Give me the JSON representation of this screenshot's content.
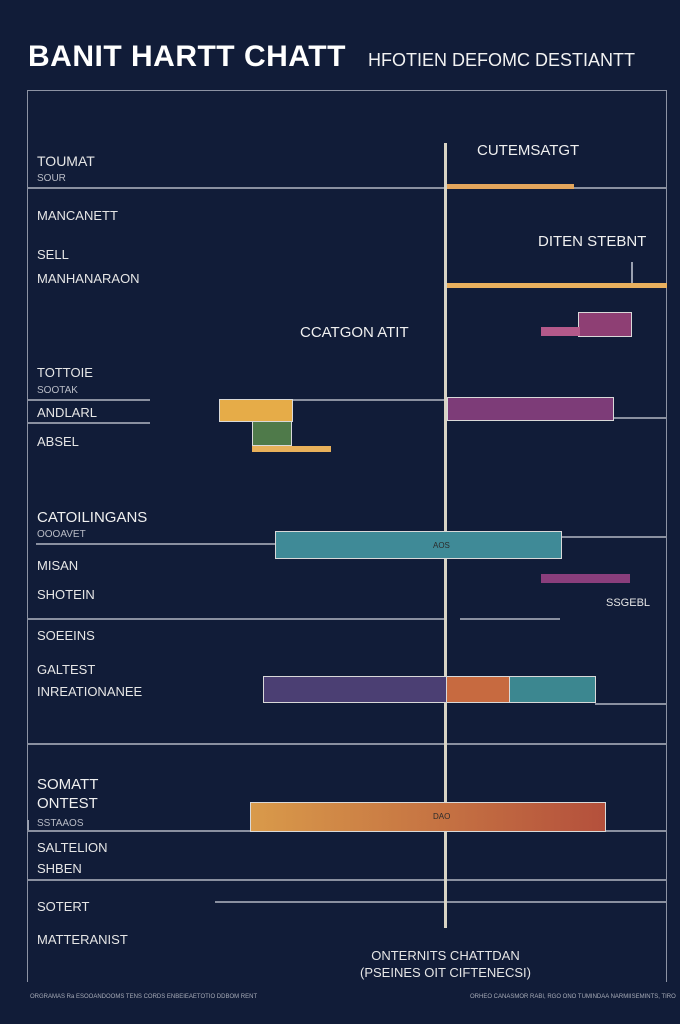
{
  "header": {
    "title": "BANIT HARTT CHATT",
    "subtitle": "HFOTIEN DEFOMC DESTIANTT"
  },
  "chart_data": {
    "type": "bar",
    "title": "BANIT HARTT CHATT",
    "subtitle": "HFOTIEN DEFOMC DESTIANTT",
    "xlabel": "",
    "ylabel": "",
    "annotations": [
      {
        "name": "cutemsatgt",
        "text": "CUTEMSATGT"
      },
      {
        "name": "diten-stebnt",
        "text": "DITEN STEBNT"
      },
      {
        "name": "ccatgon-atit",
        "text": "CCATGON ATIT"
      },
      {
        "name": "ssgebl",
        "text": "SSGEBL"
      }
    ],
    "row_labels": [
      {
        "name": "toumat",
        "text": "TOUMAT",
        "size": "normal"
      },
      {
        "name": "toumat-sub",
        "text": "SOUR",
        "size": "small"
      },
      {
        "name": "manganett",
        "text": "MANCANETT",
        "size": "normal"
      },
      {
        "name": "sell",
        "text": "SELL",
        "size": "normal"
      },
      {
        "name": "mainhanaon",
        "text": "MANHANARAON",
        "size": "normal"
      },
      {
        "name": "totiole",
        "text": "TOTTOIE",
        "size": "normal"
      },
      {
        "name": "totiole-sub",
        "text": "SOOTAK",
        "size": "small"
      },
      {
        "name": "andlarl",
        "text": "ANDLARL",
        "size": "normal"
      },
      {
        "name": "absel",
        "text": "ABSEL",
        "size": "normal"
      },
      {
        "name": "catoilingans",
        "text": "CATOILINGANS",
        "size": "big"
      },
      {
        "name": "catoilingans-sub",
        "text": "OOOAVET",
        "size": "small"
      },
      {
        "name": "misan",
        "text": "MISAN",
        "size": "normal"
      },
      {
        "name": "shoten",
        "text": "SHOTEIN",
        "size": "normal"
      },
      {
        "name": "soeeins",
        "text": "SOEEINS",
        "size": "normal"
      },
      {
        "name": "galtest",
        "text": "GALTEST",
        "size": "normal"
      },
      {
        "name": "inreationanee",
        "text": "INREATIONANEE",
        "size": "normal"
      },
      {
        "name": "somatt",
        "text": "SOMATT",
        "size": "big"
      },
      {
        "name": "ontest",
        "text": "ONTEST",
        "size": "big"
      },
      {
        "name": "ontest-sub",
        "text": "SSTAAOS",
        "size": "small"
      },
      {
        "name": "saltelion",
        "text": "SALTELION",
        "size": "normal"
      },
      {
        "name": "shben",
        "text": "SHBEN",
        "size": "normal"
      },
      {
        "name": "sotert",
        "text": "SOTERT",
        "size": "normal"
      },
      {
        "name": "matteranist",
        "text": "MATTERANIST",
        "size": "normal"
      }
    ],
    "bars": [
      {
        "name": "bar-toumat-orange",
        "color": "#e3a55c"
      },
      {
        "name": "bar-mainhanaon-orange",
        "color": "#e9b05e"
      },
      {
        "name": "bar-ccatgon-purple",
        "color": "#8e3f74"
      },
      {
        "name": "bar-ccatgon-pink",
        "color": "#b4598a"
      },
      {
        "name": "bar-andlarl-yellow",
        "color": "#e6ac48"
      },
      {
        "name": "bar-andlarl-purple",
        "color": "#7d3c78"
      },
      {
        "name": "bar-absel-green",
        "color": "#4f7a4a"
      },
      {
        "name": "bar-absel-orange",
        "color": "#e8b05a"
      },
      {
        "name": "bar-catoilingans-teal",
        "color": "#3f8a97",
        "label": "AOS"
      },
      {
        "name": "bar-misan-purple",
        "color": "#8a3e7c"
      },
      {
        "name": "bar-inreation-indigo",
        "color": "#4b3f73"
      },
      {
        "name": "bar-inreation-orange",
        "color": "#c76a40"
      },
      {
        "name": "bar-inreation-teal",
        "color": "#3c8790"
      },
      {
        "name": "bar-ontest-gradient",
        "color_start": "#d99a4a",
        "color_end": "#b4503c",
        "label": "DAO"
      }
    ]
  },
  "footer": {
    "caption_line1": "ONTERNITS CHATTDAN",
    "caption_line2": "(PSEINES OIT CIFTENECSI)",
    "footnote_left": "ORGRAMAS Ra ESOOANDOOMS TENS CORDS ENBEIEAETOTIO DDBOM RENT",
    "footnote_right": "ORHEO CANASMOR RABI, RGO ONO TUMINDAA NARMIISEMINTS, TIRO"
  }
}
